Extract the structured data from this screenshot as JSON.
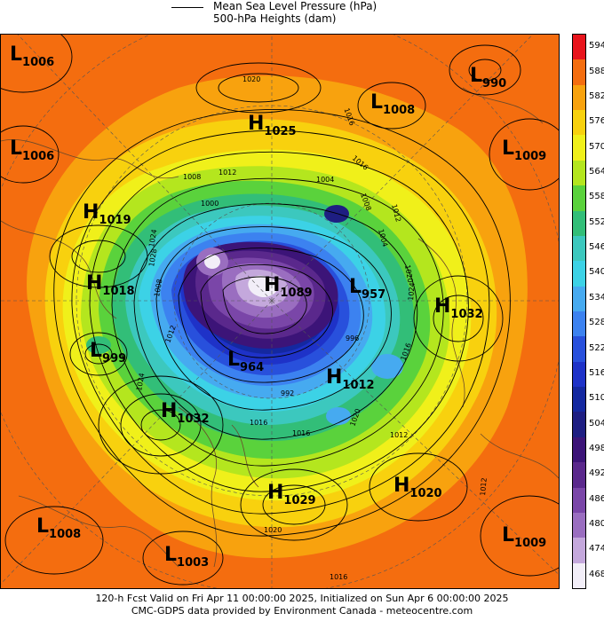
{
  "legend": {
    "items": [
      {
        "text": "Mean Sea Level Pressure (hPa)",
        "style": "solid"
      },
      {
        "text": "500-hPa Heights (dam)",
        "style": "filled"
      }
    ]
  },
  "colorbar": {
    "levels": [
      {
        "label": "594",
        "color": "#e8141c"
      },
      {
        "label": "588",
        "color": "#f46d0f"
      },
      {
        "label": "582",
        "color": "#f8a20e"
      },
      {
        "label": "576",
        "color": "#f8d10e"
      },
      {
        "label": "570",
        "color": "#f0f01a"
      },
      {
        "label": "564",
        "color": "#b4e61e"
      },
      {
        "label": "558",
        "color": "#5ad23c"
      },
      {
        "label": "552",
        "color": "#32be78"
      },
      {
        "label": "546",
        "color": "#3cc8be"
      },
      {
        "label": "540",
        "color": "#3cd2e6"
      },
      {
        "label": "534",
        "color": "#46aaf0"
      },
      {
        "label": "528",
        "color": "#3c82f0"
      },
      {
        "label": "522",
        "color": "#2850dc"
      },
      {
        "label": "516",
        "color": "#1e32c8"
      },
      {
        "label": "510",
        "color": "#1428a0"
      },
      {
        "label": "504",
        "color": "#1e1e82"
      },
      {
        "label": "498",
        "color": "#3c1478"
      },
      {
        "label": "492",
        "color": "#5a288c"
      },
      {
        "label": "486",
        "color": "#7a46a8"
      },
      {
        "label": "480",
        "color": "#9a6ec0"
      },
      {
        "label": "474",
        "color": "#c4a8dc"
      },
      {
        "label": "468",
        "color": "#f2eef8"
      }
    ]
  },
  "systems": [
    {
      "type": "L",
      "value": "1006"
    },
    {
      "type": "L",
      "value": "1006"
    },
    {
      "type": "H",
      "value": "1025"
    },
    {
      "type": "L",
      "value": "1008"
    },
    {
      "type": "L",
      "value": "990"
    },
    {
      "type": "L",
      "value": "1009"
    },
    {
      "type": "H",
      "value": "1019"
    },
    {
      "type": "H",
      "value": "1018"
    },
    {
      "type": "H",
      "value": "1089"
    },
    {
      "type": "L",
      "value": "957"
    },
    {
      "type": "H",
      "value": "1032"
    },
    {
      "type": "L",
      "value": "999"
    },
    {
      "type": "L",
      "value": "964"
    },
    {
      "type": "H",
      "value": "1012"
    },
    {
      "type": "H",
      "value": "1032"
    },
    {
      "type": "H",
      "value": "1029"
    },
    {
      "type": "H",
      "value": "1020"
    },
    {
      "type": "L",
      "value": "1008"
    },
    {
      "type": "L",
      "value": "1003"
    },
    {
      "type": "L",
      "value": "1009"
    }
  ],
  "contour_labels": [
    "1020",
    "1016",
    "1012",
    "1008",
    "1004",
    "1000",
    "996",
    "992",
    "1024",
    "1028",
    "1008",
    "1012",
    "1016",
    "1020",
    "1024",
    "1016",
    "1012",
    "1008",
    "1004",
    "1016",
    "1012",
    "1020",
    "1024",
    "1016",
    "1012",
    "1020",
    "1016"
  ],
  "footer": {
    "line1": "120-h Fcst Valid on Fri Apr 11 00:00:00 2025, Initialized on Sun Apr  6 00:00:00 2025",
    "line2": "CMC-GDPS data provided by Environment Canada - meteocentre.com"
  }
}
